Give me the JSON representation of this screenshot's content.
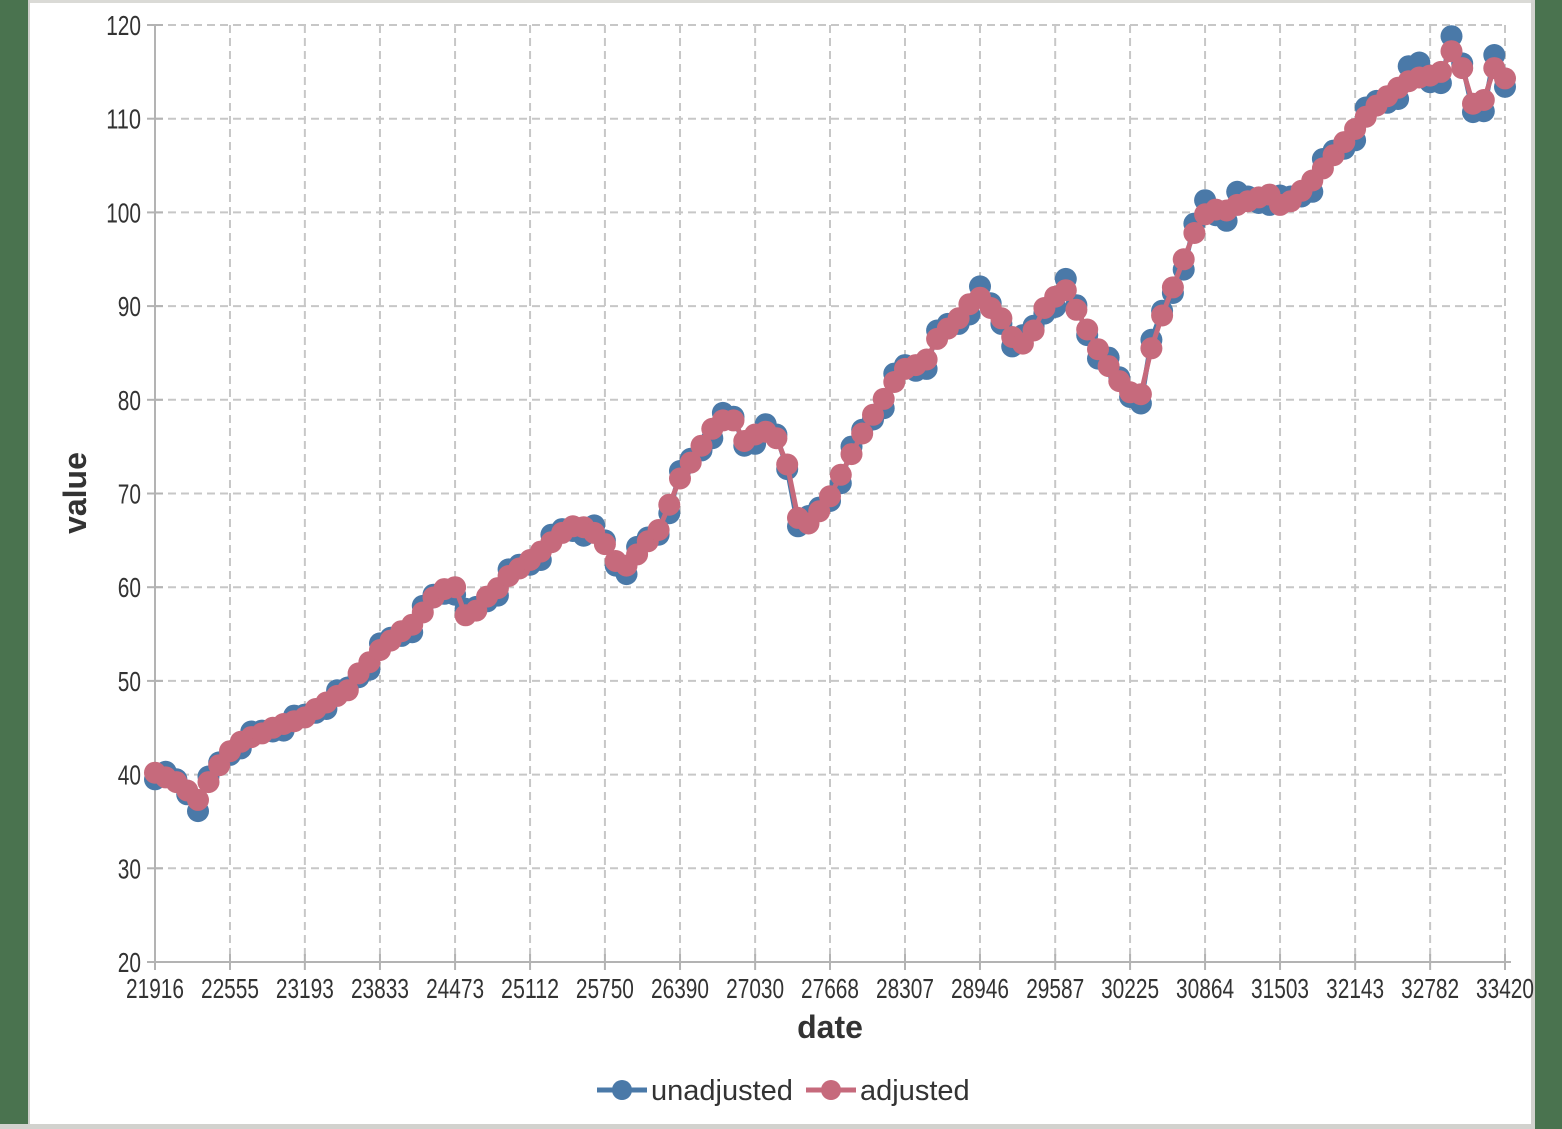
{
  "page": {
    "background_color": "#4a734f",
    "panel_color": "#ffffff",
    "border_color": "#d2d2ce"
  },
  "chart_data": {
    "type": "line",
    "title": "",
    "xlabel": "date",
    "ylabel": "value",
    "xlim": [
      21916,
      33420
    ],
    "ylim": [
      20,
      120
    ],
    "x_tick_labels": [
      21916,
      22555,
      23193,
      23833,
      24473,
      25112,
      25750,
      26390,
      27030,
      27668,
      28307,
      28946,
      29587,
      30225,
      30864,
      31503,
      32143,
      32782,
      33420
    ],
    "y_ticks": [
      20,
      30,
      40,
      50,
      60,
      70,
      80,
      90,
      100,
      110,
      120
    ],
    "grid": "both-dashed",
    "legend_position": "bottom-center",
    "x": [
      21916,
      22007,
      22098,
      22190,
      22282,
      22372,
      22463,
      22555,
      22647,
      22737,
      22828,
      22920,
      23012,
      23102,
      23193,
      23285,
      23377,
      23468,
      23559,
      23651,
      23743,
      23833,
      23924,
      24016,
      24108,
      24198,
      24289,
      24381,
      24473,
      24563,
      24654,
      24746,
      24838,
      24929,
      25020,
      25112,
      25204,
      25294,
      25385,
      25477,
      25569,
      25659,
      25750,
      25842,
      25934,
      26024,
      26115,
      26207,
      26299,
      26390,
      26481,
      26573,
      26665,
      26755,
      26846,
      26938,
      27030,
      27120,
      27211,
      27303,
      27395,
      27485,
      27576,
      27668,
      27760,
      27851,
      27942,
      28034,
      28126,
      28216,
      28307,
      28399,
      28491,
      28581,
      28672,
      28764,
      28856,
      28946,
      29037,
      29129,
      29221,
      29312,
      29403,
      29495,
      29587,
      29677,
      29768,
      29860,
      29952,
      30042,
      30133,
      30225,
      30317,
      30407,
      30498,
      30590,
      30682,
      30773,
      30864,
      30956,
      31048,
      31138,
      31229,
      31321,
      31413,
      31503,
      31594,
      31686,
      31778,
      31868,
      31959,
      32051,
      32143,
      32234,
      32325,
      32417,
      32509,
      32599,
      32690,
      32782,
      32874,
      32964,
      33055,
      33147,
      33239,
      33329,
      33420
    ],
    "series": [
      {
        "name": "unadjusted",
        "color": "#4a79a8",
        "values": [
          39.5,
          40.3,
          39.5,
          37.9,
          36.1,
          39.8,
          41.3,
          42.1,
          42.8,
          44.6,
          44.7,
          44.6,
          44.7,
          46.3,
          46.4,
          46.6,
          47.0,
          49.0,
          49.3,
          50.4,
          51.2,
          54.0,
          54.6,
          54.8,
          55.2,
          58.0,
          59.2,
          59.3,
          59.2,
          57.7,
          57.9,
          58.5,
          59.1,
          61.9,
          62.4,
          62.4,
          62.9,
          65.6,
          66.2,
          66.0,
          65.5,
          66.6,
          65.0,
          62.3,
          61.4,
          64.3,
          65.3,
          65.6,
          67.9,
          72.4,
          73.7,
          74.6,
          75.9,
          78.6,
          78.2,
          75.1,
          75.3,
          77.4,
          76.3,
          72.6,
          66.5,
          67.6,
          68.5,
          69.2,
          71.1,
          75.0,
          76.8,
          77.9,
          79.1,
          82.8,
          83.7,
          83.1,
          83.3,
          87.4,
          88.1,
          88.1,
          89.1,
          92.1,
          90.3,
          88.1,
          85.7,
          86.9,
          87.9,
          89.2,
          89.9,
          92.9,
          90.1,
          86.9,
          84.4,
          84.5,
          82.4,
          80.3,
          79.6,
          86.4,
          89.5,
          91.4,
          93.9,
          98.8,
          101.3,
          99.7,
          99.1,
          102.2,
          101.7,
          101.0,
          100.8,
          101.8,
          101.7,
          101.7,
          102.2,
          105.7,
          106.6,
          106.8,
          107.7,
          111.2,
          111.9,
          111.7,
          112.1,
          115.6,
          116.0,
          113.9,
          113.8,
          118.8,
          115.9,
          110.7,
          110.8,
          116.8,
          113.4
        ]
      },
      {
        "name": "adjusted",
        "color": "#c66a7c",
        "values": [
          40.2,
          39.7,
          39.2,
          38.3,
          37.3,
          39.2,
          41.0,
          42.5,
          43.5,
          44.0,
          44.4,
          45.0,
          45.4,
          45.7,
          46.1,
          47.0,
          47.7,
          48.4,
          49.0,
          50.8,
          52.0,
          53.3,
          54.3,
          55.3,
          56.0,
          57.3,
          58.9,
          59.8,
          60.0,
          57.0,
          57.5,
          59.0,
          59.9,
          61.2,
          62.0,
          62.9,
          63.8,
          64.8,
          65.8,
          66.5,
          66.4,
          65.8,
          64.6,
          62.8,
          62.3,
          63.5,
          64.9,
          66.1,
          68.8,
          71.6,
          73.3,
          75.1,
          76.9,
          77.8,
          77.8,
          75.6,
          76.3,
          76.6,
          75.9,
          73.1,
          67.4,
          66.8,
          68.1,
          69.7,
          72.0,
          74.2,
          76.4,
          78.4,
          80.1,
          81.9,
          83.3,
          83.7,
          84.3,
          86.5,
          87.6,
          88.7,
          90.2,
          90.9,
          89.8,
          88.7,
          86.7,
          86.0,
          87.4,
          89.8,
          91.0,
          91.7,
          89.6,
          87.5,
          85.4,
          83.6,
          82.0,
          80.8,
          80.6,
          85.5,
          89.0,
          92.0,
          95.0,
          97.8,
          99.8,
          100.3,
          100.2,
          100.8,
          101.2,
          101.6,
          101.9,
          100.8,
          101.2,
          102.3,
          103.4,
          104.7,
          106.1,
          107.5,
          108.9,
          110.2,
          111.4,
          112.4,
          113.3,
          114.0,
          114.4,
          114.6,
          115.0,
          117.2,
          115.4,
          111.6,
          112.0,
          115.4,
          114.3
        ]
      }
    ]
  }
}
